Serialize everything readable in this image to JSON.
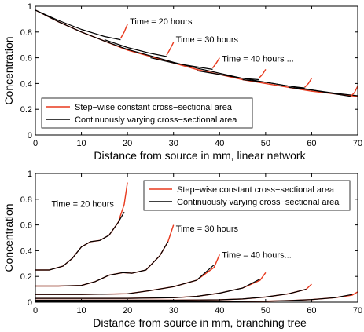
{
  "colors": {
    "stepwise": "#e8391d",
    "continuous": "#000000",
    "axis": "#000000"
  },
  "chart_data": [
    {
      "type": "line",
      "xlabel": "Distance from source in mm, linear network",
      "ylabel": "Concentration",
      "xlim": [
        0,
        70
      ],
      "ylim": [
        0,
        1
      ],
      "xticks": [
        "0",
        "10",
        "20",
        "30",
        "40",
        "50",
        "60",
        "70"
      ],
      "yticks": [
        "0",
        "0.2",
        "0.4",
        "0.6",
        "0.8",
        "1"
      ],
      "legend": {
        "placement": "bottom-left",
        "entries": [
          "Step−wise constant cross−sectional area",
          "Continuously varying cross−sectional area"
        ]
      },
      "annotations": [
        {
          "text": "Time = 20 hours",
          "x": 20.5,
          "y": 0.86
        },
        {
          "text": "Time = 30 hours",
          "x": 30.5,
          "y": 0.72
        },
        {
          "text": "Time = 40 hours ...",
          "x": 40.5,
          "y": 0.57
        }
      ],
      "series": [
        {
          "style": "stepwise",
          "x": [
            0,
            5,
            10,
            15,
            20,
            25,
            30,
            35,
            40,
            45,
            50,
            55,
            60,
            65,
            70
          ],
          "y": [
            0.97,
            0.88,
            0.8,
            0.73,
            0.66,
            0.61,
            0.56,
            0.51,
            0.47,
            0.43,
            0.4,
            0.37,
            0.34,
            0.32,
            0.3
          ]
        },
        {
          "style": "continuous",
          "x": [
            0,
            5,
            10,
            15,
            20,
            25,
            30,
            35,
            40,
            45,
            50,
            55,
            60,
            65,
            70
          ],
          "y": [
            0.97,
            0.88,
            0.8,
            0.73,
            0.665,
            0.615,
            0.565,
            0.52,
            0.48,
            0.44,
            0.41,
            0.38,
            0.35,
            0.325,
            0.305
          ]
        },
        {
          "style": "continuous",
          "x": [
            0,
            5,
            10,
            15,
            18.5
          ],
          "y": [
            0.97,
            0.89,
            0.82,
            0.765,
            0.74
          ]
        },
        {
          "style": "stepwise",
          "x": [
            18.5,
            19.3,
            20
          ],
          "y": [
            0.75,
            0.8,
            0.86
          ]
        },
        {
          "style": "continuous",
          "x": [
            15,
            20,
            25,
            28.5
          ],
          "y": [
            0.74,
            0.68,
            0.635,
            0.61
          ]
        },
        {
          "style": "stepwise",
          "x": [
            28.5,
            29.3,
            30
          ],
          "y": [
            0.62,
            0.67,
            0.72
          ]
        },
        {
          "style": "continuous",
          "x": [
            25,
            30,
            35,
            38.5
          ],
          "y": [
            0.6,
            0.56,
            0.53,
            0.51
          ]
        },
        {
          "style": "stepwise",
          "x": [
            38.5,
            39.3,
            40
          ],
          "y": [
            0.52,
            0.56,
            0.6
          ]
        },
        {
          "style": "continuous",
          "x": [
            35,
            40,
            45,
            48.5
          ],
          "y": [
            0.5,
            0.47,
            0.44,
            0.43
          ]
        },
        {
          "style": "stepwise",
          "x": [
            48.5,
            49.3,
            50
          ],
          "y": [
            0.44,
            0.47,
            0.51
          ]
        },
        {
          "style": "continuous",
          "x": [
            45,
            50,
            55,
            58.5
          ],
          "y": [
            0.43,
            0.41,
            0.38,
            0.365
          ]
        },
        {
          "style": "stepwise",
          "x": [
            58.5,
            59.3,
            60
          ],
          "y": [
            0.37,
            0.4,
            0.44
          ]
        },
        {
          "style": "continuous",
          "x": [
            55,
            60,
            65,
            68.5
          ],
          "y": [
            0.37,
            0.35,
            0.32,
            0.3
          ]
        },
        {
          "style": "stepwise",
          "x": [
            68.5,
            69.3,
            70
          ],
          "y": [
            0.3,
            0.33,
            0.38
          ]
        }
      ]
    },
    {
      "type": "line",
      "xlabel": "Distance from source in mm, branching tree",
      "ylabel": "Concentration",
      "xlim": [
        0,
        70
      ],
      "ylim": [
        0,
        1
      ],
      "xticks": [
        "0",
        "10",
        "20",
        "30",
        "40",
        "50",
        "60",
        "70"
      ],
      "yticks": [
        "0",
        "0.2",
        "0.4",
        "0.6",
        "0.8",
        "1"
      ],
      "legend": {
        "placement": "top-right",
        "entries": [
          "Step−wise constant cross−sectional area",
          "Continuously varying cross−sectional area"
        ]
      },
      "annotations": [
        {
          "text": "Time = 20 hours",
          "x": 3.5,
          "y": 0.74
        },
        {
          "text": "Time = 30 hours",
          "x": 30.5,
          "y": 0.55
        },
        {
          "text": "Time = 40 hours...",
          "x": 40.5,
          "y": 0.345
        }
      ],
      "series": [
        {
          "style": "stepwise",
          "x": [
            0,
            3,
            6,
            8,
            10,
            12,
            14,
            16,
            18,
            19.3,
            20
          ],
          "y": [
            0.25,
            0.25,
            0.28,
            0.34,
            0.43,
            0.47,
            0.48,
            0.52,
            0.62,
            0.76,
            0.93
          ]
        },
        {
          "style": "continuous",
          "x": [
            0,
            3,
            6,
            8,
            10,
            12,
            14,
            16,
            18,
            19.3
          ],
          "y": [
            0.25,
            0.25,
            0.28,
            0.34,
            0.43,
            0.47,
            0.48,
            0.52,
            0.62,
            0.7
          ]
        },
        {
          "style": "stepwise",
          "x": [
            0,
            5,
            10,
            13,
            16,
            19,
            21,
            24,
            27,
            28.8,
            30
          ],
          "y": [
            0.125,
            0.125,
            0.13,
            0.16,
            0.21,
            0.23,
            0.225,
            0.25,
            0.36,
            0.47,
            0.6
          ]
        },
        {
          "style": "continuous",
          "x": [
            0,
            5,
            10,
            13,
            16,
            19,
            21,
            24,
            27,
            28.8
          ],
          "y": [
            0.125,
            0.125,
            0.13,
            0.16,
            0.21,
            0.23,
            0.225,
            0.25,
            0.36,
            0.47
          ]
        },
        {
          "style": "stepwise",
          "x": [
            0,
            10,
            20,
            25,
            30,
            35,
            38.8,
            40
          ],
          "y": [
            0.06,
            0.06,
            0.065,
            0.09,
            0.12,
            0.17,
            0.27,
            0.37
          ]
        },
        {
          "style": "continuous",
          "x": [
            0,
            10,
            20,
            25,
            30,
            35,
            38.8
          ],
          "y": [
            0.06,
            0.06,
            0.065,
            0.09,
            0.12,
            0.17,
            0.29
          ]
        },
        {
          "style": "stepwise",
          "x": [
            0,
            20,
            30,
            35,
            40,
            45,
            48.8,
            50
          ],
          "y": [
            0.03,
            0.03,
            0.035,
            0.045,
            0.07,
            0.11,
            0.17,
            0.23
          ]
        },
        {
          "style": "continuous",
          "x": [
            0,
            20,
            30,
            35,
            40,
            45,
            48.8
          ],
          "y": [
            0.03,
            0.03,
            0.035,
            0.045,
            0.07,
            0.11,
            0.18
          ]
        },
        {
          "style": "stepwise",
          "x": [
            0,
            30,
            40,
            45,
            50,
            55,
            58.8,
            60
          ],
          "y": [
            0.015,
            0.015,
            0.018,
            0.025,
            0.04,
            0.065,
            0.1,
            0.14
          ]
        },
        {
          "style": "continuous",
          "x": [
            0,
            30,
            40,
            45,
            50,
            55,
            58.8
          ],
          "y": [
            0.015,
            0.015,
            0.018,
            0.025,
            0.04,
            0.065,
            0.1
          ]
        },
        {
          "style": "stepwise",
          "x": [
            0,
            40,
            50,
            55,
            60,
            65,
            68.8,
            70
          ],
          "y": [
            0.006,
            0.006,
            0.008,
            0.012,
            0.02,
            0.035,
            0.055,
            0.08
          ]
        },
        {
          "style": "continuous",
          "x": [
            0,
            40,
            50,
            55,
            60,
            65,
            68.8
          ],
          "y": [
            0.006,
            0.006,
            0.008,
            0.012,
            0.02,
            0.035,
            0.06
          ]
        }
      ]
    }
  ]
}
